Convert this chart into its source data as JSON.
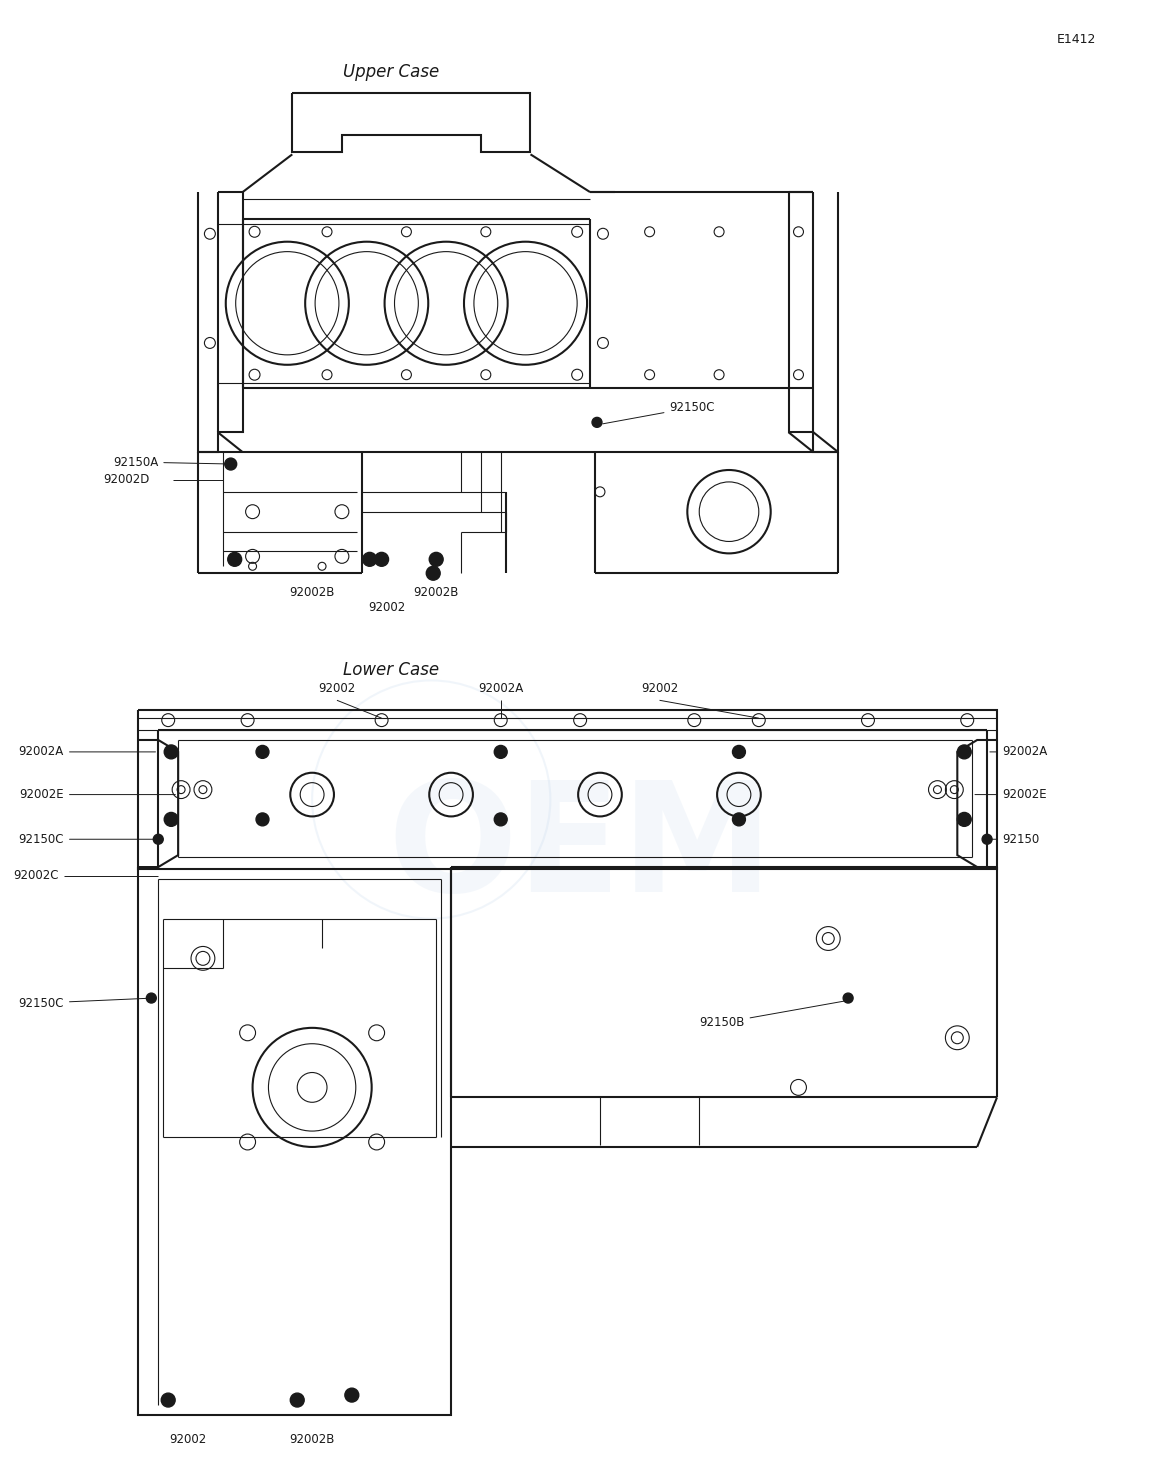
{
  "bg_color": "#ffffff",
  "line_color": "#1a1a1a",
  "text_color": "#1a1a1a",
  "upper_label": "Upper Case",
  "lower_label": "Lower Case",
  "ref_label": "E1412",
  "watermark_color": "#b8cfe8",
  "figsize": [
    11.6,
    14.77
  ],
  "dpi": 100
}
